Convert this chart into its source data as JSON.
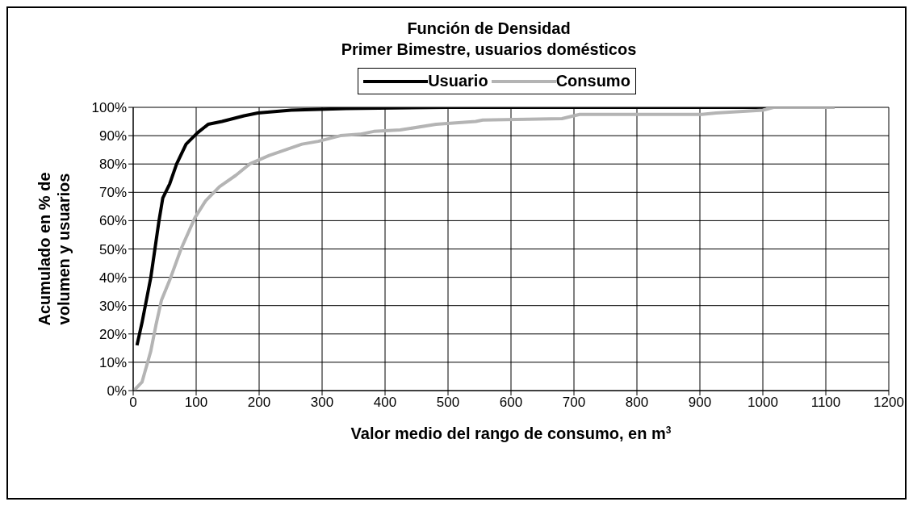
{
  "chart_data": {
    "type": "line",
    "title": "Función de Densidad",
    "subtitle": "Primer Bimestre, usuarios domésticos",
    "xlabel": "Valor medio del rango de consumo, en m$^{3}$",
    "ylabel": "Acumulado en % de\nvolumen y usuarios",
    "series": [
      {
        "name": "Usuario",
        "color": "#000000",
        "x": [
          6,
          14,
          28,
          41,
          47,
          58,
          69,
          84,
          102,
          119,
          141,
          176,
          198,
          251,
          338,
          500,
          700,
          1005
        ],
        "values": [
          16,
          24,
          40,
          60,
          68,
          73,
          80,
          87,
          91,
          94,
          95,
          97,
          98,
          99,
          99.6,
          100,
          100,
          100
        ]
      },
      {
        "name": "Consumo",
        "color": "#b4b4b4",
        "x": [
          1,
          14,
          28,
          36,
          45,
          58,
          76,
          98,
          115,
          137,
          163,
          185,
          216,
          242,
          268,
          294,
          329,
          360,
          382,
          424,
          481,
          544,
          555,
          681,
          709,
          903,
          926,
          1000,
          1017,
          1114
        ],
        "values": [
          0,
          3,
          14,
          23,
          32,
          39,
          50,
          61,
          67,
          72,
          76,
          80,
          83,
          85,
          87,
          88,
          90,
          90.5,
          91.5,
          92,
          94,
          95,
          95.5,
          96,
          97.5,
          97.5,
          98,
          99,
          100,
          100
        ]
      }
    ],
    "xlim": [
      0,
      1200
    ],
    "xticks": [
      0,
      100,
      200,
      300,
      400,
      500,
      600,
      700,
      800,
      900,
      1000,
      1100,
      1200
    ],
    "ylim": [
      0,
      100
    ],
    "yticks": [
      {
        "value": 0,
        "label": "0%"
      },
      {
        "value": 10,
        "label": "10%"
      },
      {
        "value": 20,
        "label": "20%"
      },
      {
        "value": 30,
        "label": "30%"
      },
      {
        "value": 40,
        "label": "40%"
      },
      {
        "value": 50,
        "label": "50%"
      },
      {
        "value": 60,
        "label": "60%"
      },
      {
        "value": 70,
        "label": "70%"
      },
      {
        "value": 80,
        "label": "80%"
      },
      {
        "value": 90,
        "label": "90%"
      },
      {
        "value": 100,
        "label": "100%"
      }
    ],
    "grid": true,
    "legend": "top",
    "line_style": "solid"
  }
}
